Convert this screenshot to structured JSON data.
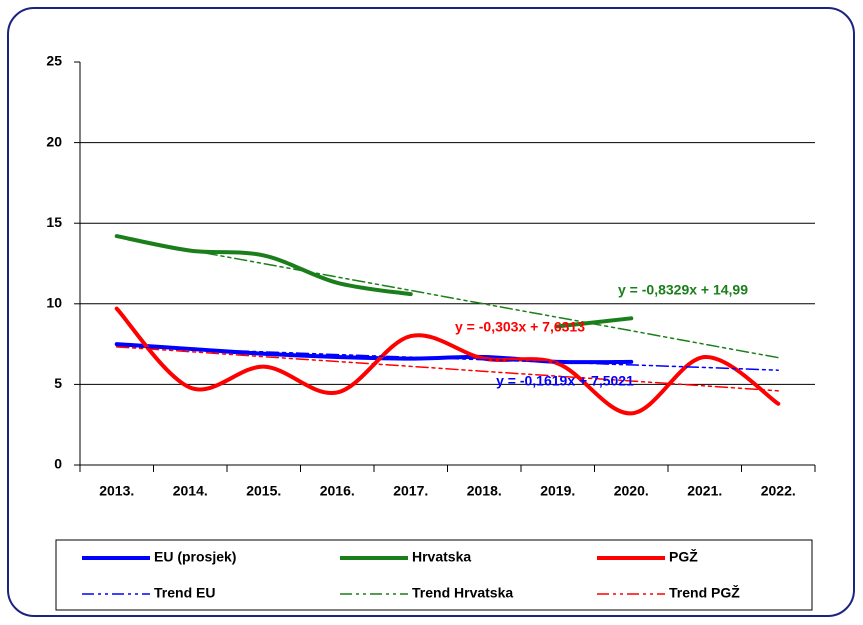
{
  "chart_data": {
    "type": "line",
    "categories": [
      "2013.",
      "2014.",
      "2015.",
      "2016.",
      "2017.",
      "2018.",
      "2019.",
      "2020.",
      "2021.",
      "2022."
    ],
    "series": [
      {
        "name": "EU (prosjek)",
        "color": "#0000ff",
        "style": "solid",
        "values": [
          7.5,
          7.2,
          6.9,
          6.7,
          6.6,
          6.7,
          6.4,
          6.4,
          null,
          null
        ]
      },
      {
        "name": "Hrvatska",
        "color": "#1a7f1a",
        "style": "solid",
        "values": [
          14.2,
          13.3,
          13.0,
          11.3,
          10.6,
          null,
          8.6,
          9.1,
          null,
          null
        ]
      },
      {
        "name": "PGŽ",
        "color": "#ff0000",
        "style": "solid",
        "values": [
          9.7,
          4.8,
          6.1,
          4.5,
          8.0,
          6.6,
          6.3,
          3.2,
          6.7,
          3.8
        ]
      },
      {
        "name": "Trend EU",
        "color": "#0000ff",
        "style": "dashdot",
        "values": [
          7.34,
          7.18,
          7.02,
          6.85,
          6.69,
          6.53,
          6.37,
          6.21,
          6.05,
          5.88
        ]
      },
      {
        "name": "Trend Hrvatska",
        "color": "#1a7f1a",
        "style": "dashdot",
        "values": [
          14.16,
          13.32,
          12.49,
          11.66,
          10.83,
          9.99,
          9.16,
          8.33,
          7.49,
          6.66
        ]
      },
      {
        "name": "Trend PGŽ",
        "color": "#ff0000",
        "style": "dashdot",
        "values": [
          7.33,
          7.03,
          6.72,
          6.42,
          6.12,
          5.81,
          5.51,
          5.21,
          4.91,
          4.6
        ]
      }
    ],
    "annotations": [
      {
        "text": "y = -0,8329x + 14,99",
        "color": "#1a7f1a"
      },
      {
        "text": "y = -0,303x + 7,6313",
        "color": "#ff0000"
      },
      {
        "text": "y = -0,1619x + 7,5021",
        "color": "#0000ff"
      }
    ],
    "ylim": [
      0,
      25
    ],
    "yticks": [
      0,
      5,
      10,
      15,
      20,
      25
    ],
    "grid": true,
    "legend": "bottom"
  }
}
